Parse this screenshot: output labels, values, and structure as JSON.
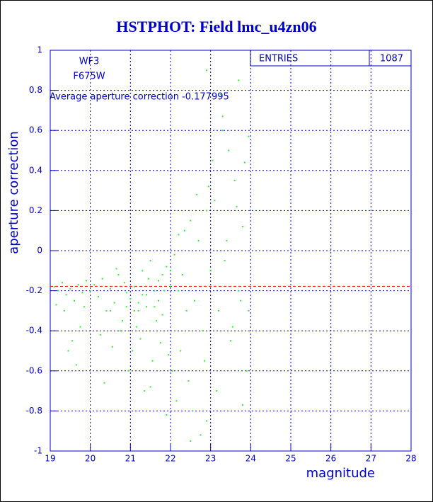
{
  "chart_data": {
    "type": "scatter",
    "title": "HSTPHOT: Field lmc_u4zn06",
    "x_label": "magnitude",
    "y_label": "aperture correction",
    "xlim": [
      19,
      28
    ],
    "ylim": [
      -1,
      1
    ],
    "xticks": [
      19,
      20,
      21,
      22,
      23,
      24,
      25,
      26,
      27,
      28
    ],
    "yticks": [
      -1,
      -0.8,
      -0.6,
      -0.4,
      -0.2,
      0,
      0.2,
      0.4,
      0.6,
      0.8,
      1
    ],
    "grid": true,
    "info": [
      "WF3",
      "F675W"
    ],
    "annotation": "Average aperture correction -0.177995",
    "hline": {
      "value": -0.177995,
      "color": "#ff0000"
    },
    "stats": {
      "label": "ENTRIES",
      "value": 1087
    },
    "series": [
      {
        "color": "#33ee33",
        "x": [
          19.1,
          19.2,
          19.3,
          19.4,
          19.5,
          19.6,
          19.7,
          19.8,
          19.9,
          19.15,
          19.35,
          19.55,
          19.45,
          19.65,
          19.75,
          19.85,
          20.0,
          20.1,
          20.2,
          20.3,
          20.4,
          20.5,
          20.6,
          20.7,
          20.8,
          20.9,
          20.25,
          20.35,
          20.55,
          20.65,
          20.75,
          20.85,
          20.95,
          21.0,
          21.1,
          21.2,
          21.3,
          21.4,
          21.5,
          21.6,
          21.7,
          21.8,
          21.9,
          21.05,
          21.15,
          21.25,
          21.35,
          21.45,
          21.55,
          21.65,
          21.75,
          21.85,
          21.95,
          21.5,
          21.9,
          22.0,
          22.1,
          22.2,
          22.3,
          22.4,
          22.5,
          22.6,
          22.7,
          22.8,
          22.9,
          22.05,
          22.15,
          22.25,
          22.35,
          22.45,
          22.55,
          22.65,
          22.75,
          22.85,
          22.95,
          22.5,
          22.9,
          23.0,
          23.1,
          23.2,
          23.3,
          23.4,
          23.5,
          23.6,
          23.7,
          23.8,
          23.9,
          23.05,
          23.15,
          23.25,
          23.35,
          23.45,
          23.55,
          23.65,
          23.75,
          23.85,
          23.95,
          23.3,
          23.7,
          23.8,
          22.9,
          23.95,
          20.5,
          21.2,
          21.4,
          21.6,
          21.8,
          21.3,
          21.1,
          20.9,
          21.7,
          22.0,
          22.2
        ],
        "values": [
          -0.18,
          -0.2,
          -0.16,
          -0.22,
          -0.19,
          -0.25,
          -0.17,
          -0.21,
          -0.15,
          -0.27,
          -0.3,
          -0.45,
          -0.5,
          -0.57,
          -0.38,
          -0.28,
          -0.2,
          -0.17,
          -0.23,
          -0.14,
          -0.3,
          -0.19,
          -0.26,
          -0.12,
          -0.35,
          -0.21,
          -0.42,
          -0.66,
          -0.48,
          -0.09,
          -0.4,
          -0.16,
          -0.6,
          -0.24,
          -0.18,
          -0.3,
          -0.1,
          -0.22,
          -0.05,
          -0.28,
          -0.15,
          -0.32,
          -0.08,
          -0.5,
          -0.38,
          -0.44,
          -0.7,
          -0.14,
          -0.55,
          -0.35,
          -0.46,
          -0.2,
          -0.52,
          -0.68,
          -0.82,
          -0.18,
          -0.02,
          0.08,
          -0.12,
          -0.3,
          0.15,
          -0.25,
          0.05,
          -0.4,
          0.2,
          -0.6,
          -0.75,
          -0.5,
          0.1,
          -0.65,
          -0.8,
          0.28,
          -0.92,
          -0.55,
          0.32,
          -0.95,
          0.9,
          -0.1,
          0.25,
          -0.3,
          0.6,
          0.05,
          -0.45,
          0.35,
          -0.2,
          0.12,
          -0.6,
          0.45,
          -0.7,
          0.78,
          -0.05,
          0.5,
          -0.38,
          0.22,
          -0.25,
          0.44,
          0.57,
          0.67,
          0.85,
          -0.77,
          -0.85,
          -0.3,
          -0.3,
          -0.26,
          -0.28,
          -0.2,
          -0.12,
          -0.22,
          -0.3,
          -0.28,
          -0.25,
          -0.1,
          -0.2
        ]
      }
    ]
  }
}
